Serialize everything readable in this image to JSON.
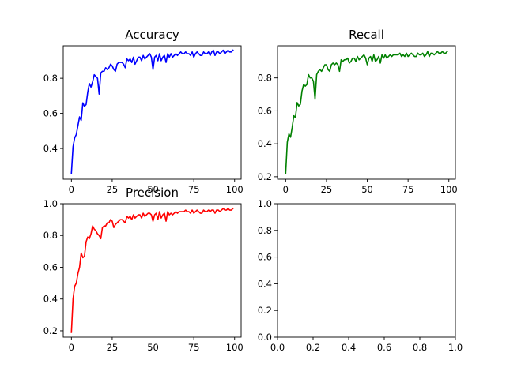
{
  "chart_data": [
    {
      "type": "line",
      "title": "Accuracy",
      "xlabel": "",
      "ylabel": "",
      "xlim": [
        -5,
        104
      ],
      "ylim": [
        0.225,
        0.985
      ],
      "xticks": [
        0,
        25,
        50,
        75,
        100
      ],
      "yticks": [
        0.4,
        0.6,
        0.8
      ],
      "xtick_labels": [
        "0",
        "25",
        "50",
        "75",
        "100"
      ],
      "ytick_labels": [
        "0.4",
        "0.6",
        "0.8"
      ],
      "grid": false,
      "color": "#0000ff",
      "series": [
        {
          "color": "#0000ff",
          "x": [
            0,
            1,
            2,
            3,
            4,
            5,
            6,
            7,
            8,
            9,
            10,
            11,
            12,
            13,
            14,
            15,
            16,
            17,
            18,
            19,
            20,
            21,
            22,
            23,
            24,
            25,
            26,
            27,
            28,
            29,
            30,
            31,
            32,
            33,
            34,
            35,
            36,
            37,
            38,
            39,
            40,
            41,
            42,
            43,
            44,
            45,
            46,
            47,
            48,
            49,
            50,
            51,
            52,
            53,
            54,
            55,
            56,
            57,
            58,
            59,
            60,
            61,
            62,
            63,
            64,
            65,
            66,
            67,
            68,
            69,
            70,
            71,
            72,
            73,
            74,
            75,
            76,
            77,
            78,
            79,
            80,
            81,
            82,
            83,
            84,
            85,
            86,
            87,
            88,
            89,
            90,
            91,
            92,
            93,
            94,
            95,
            96,
            97,
            98,
            99
          ],
          "y": [
            0.26,
            0.41,
            0.46,
            0.48,
            0.53,
            0.58,
            0.56,
            0.66,
            0.64,
            0.65,
            0.72,
            0.77,
            0.75,
            0.78,
            0.82,
            0.81,
            0.8,
            0.71,
            0.83,
            0.84,
            0.84,
            0.86,
            0.85,
            0.86,
            0.88,
            0.87,
            0.85,
            0.84,
            0.88,
            0.89,
            0.89,
            0.89,
            0.88,
            0.86,
            0.91,
            0.9,
            0.91,
            0.89,
            0.92,
            0.88,
            0.9,
            0.92,
            0.92,
            0.9,
            0.93,
            0.91,
            0.92,
            0.93,
            0.94,
            0.92,
            0.85,
            0.92,
            0.93,
            0.9,
            0.94,
            0.9,
            0.92,
            0.93,
            0.89,
            0.94,
            0.92,
            0.94,
            0.92,
            0.93,
            0.94,
            0.93,
            0.94,
            0.95,
            0.94,
            0.94,
            0.95,
            0.94,
            0.94,
            0.93,
            0.95,
            0.92,
            0.94,
            0.95,
            0.94,
            0.93,
            0.93,
            0.95,
            0.94,
            0.94,
            0.95,
            0.93,
            0.95,
            0.96,
            0.93,
            0.95,
            0.95,
            0.94,
            0.95,
            0.96,
            0.94,
            0.95,
            0.96,
            0.95,
            0.95,
            0.96
          ]
        }
      ]
    },
    {
      "type": "line",
      "title": "Recall",
      "xlabel": "",
      "ylabel": "",
      "xlim": [
        -5,
        104
      ],
      "ylim": [
        0.185,
        0.995
      ],
      "xticks": [
        0,
        25,
        50,
        75,
        100
      ],
      "yticks": [
        0.2,
        0.4,
        0.6,
        0.8
      ],
      "xtick_labels": [
        "0",
        "25",
        "50",
        "75",
        "100"
      ],
      "ytick_labels": [
        "0.2",
        "0.4",
        "0.6",
        "0.8"
      ],
      "grid": false,
      "color": "#008000",
      "series": [
        {
          "color": "#008000",
          "x": [
            0,
            1,
            2,
            3,
            4,
            5,
            6,
            7,
            8,
            9,
            10,
            11,
            12,
            13,
            14,
            15,
            16,
            17,
            18,
            19,
            20,
            21,
            22,
            23,
            24,
            25,
            26,
            27,
            28,
            29,
            30,
            31,
            32,
            33,
            34,
            35,
            36,
            37,
            38,
            39,
            40,
            41,
            42,
            43,
            44,
            45,
            46,
            47,
            48,
            49,
            50,
            51,
            52,
            53,
            54,
            55,
            56,
            57,
            58,
            59,
            60,
            61,
            62,
            63,
            64,
            65,
            66,
            67,
            68,
            69,
            70,
            71,
            72,
            73,
            74,
            75,
            76,
            77,
            78,
            79,
            80,
            81,
            82,
            83,
            84,
            85,
            86,
            87,
            88,
            89,
            90,
            91,
            92,
            93,
            94,
            95,
            96,
            97,
            98,
            99
          ],
          "y": [
            0.22,
            0.41,
            0.46,
            0.44,
            0.5,
            0.57,
            0.56,
            0.65,
            0.63,
            0.64,
            0.72,
            0.76,
            0.75,
            0.76,
            0.82,
            0.8,
            0.8,
            0.78,
            0.67,
            0.82,
            0.84,
            0.85,
            0.84,
            0.86,
            0.88,
            0.88,
            0.85,
            0.84,
            0.88,
            0.89,
            0.88,
            0.89,
            0.88,
            0.84,
            0.91,
            0.9,
            0.91,
            0.91,
            0.92,
            0.89,
            0.9,
            0.92,
            0.92,
            0.9,
            0.93,
            0.91,
            0.92,
            0.93,
            0.94,
            0.92,
            0.88,
            0.92,
            0.93,
            0.9,
            0.94,
            0.9,
            0.91,
            0.93,
            0.89,
            0.94,
            0.92,
            0.94,
            0.92,
            0.93,
            0.94,
            0.93,
            0.94,
            0.94,
            0.94,
            0.94,
            0.95,
            0.93,
            0.94,
            0.93,
            0.95,
            0.93,
            0.94,
            0.95,
            0.94,
            0.93,
            0.93,
            0.95,
            0.94,
            0.94,
            0.95,
            0.93,
            0.94,
            0.96,
            0.93,
            0.95,
            0.95,
            0.94,
            0.95,
            0.96,
            0.95,
            0.95,
            0.96,
            0.95,
            0.95,
            0.96
          ]
        }
      ]
    },
    {
      "type": "line",
      "title": "Precision",
      "xlabel": "",
      "ylabel": "",
      "xlim": [
        -5,
        104
      ],
      "ylim": [
        0.16,
        1.0
      ],
      "xticks": [
        0,
        25,
        50,
        75,
        100
      ],
      "yticks": [
        0.2,
        0.4,
        0.6,
        0.8,
        1.0
      ],
      "xtick_labels": [
        "0",
        "25",
        "50",
        "75",
        "100"
      ],
      "ytick_labels": [
        "0.2",
        "0.4",
        "0.6",
        "0.8",
        "1.0"
      ],
      "grid": false,
      "color": "#ff0000",
      "series": [
        {
          "color": "#ff0000",
          "x": [
            0,
            1,
            2,
            3,
            4,
            5,
            6,
            7,
            8,
            9,
            10,
            11,
            12,
            13,
            14,
            15,
            16,
            17,
            18,
            19,
            20,
            21,
            22,
            23,
            24,
            25,
            26,
            27,
            28,
            29,
            30,
            31,
            32,
            33,
            34,
            35,
            36,
            37,
            38,
            39,
            40,
            41,
            42,
            43,
            44,
            45,
            46,
            47,
            48,
            49,
            50,
            51,
            52,
            53,
            54,
            55,
            56,
            57,
            58,
            59,
            60,
            61,
            62,
            63,
            64,
            65,
            66,
            67,
            68,
            69,
            70,
            71,
            72,
            73,
            74,
            75,
            76,
            77,
            78,
            79,
            80,
            81,
            82,
            83,
            84,
            85,
            86,
            87,
            88,
            89,
            90,
            91,
            92,
            93,
            94,
            95,
            96,
            97,
            98,
            99
          ],
          "y": [
            0.19,
            0.4,
            0.48,
            0.5,
            0.56,
            0.6,
            0.69,
            0.66,
            0.67,
            0.76,
            0.79,
            0.78,
            0.81,
            0.86,
            0.84,
            0.83,
            0.81,
            0.8,
            0.78,
            0.85,
            0.86,
            0.86,
            0.88,
            0.88,
            0.9,
            0.89,
            0.85,
            0.87,
            0.88,
            0.89,
            0.9,
            0.9,
            0.89,
            0.88,
            0.92,
            0.91,
            0.92,
            0.9,
            0.93,
            0.91,
            0.92,
            0.93,
            0.93,
            0.91,
            0.94,
            0.92,
            0.93,
            0.94,
            0.94,
            0.93,
            0.89,
            0.93,
            0.94,
            0.9,
            0.95,
            0.91,
            0.93,
            0.94,
            0.89,
            0.95,
            0.93,
            0.94,
            0.93,
            0.94,
            0.95,
            0.94,
            0.95,
            0.95,
            0.95,
            0.95,
            0.96,
            0.95,
            0.95,
            0.94,
            0.96,
            0.94,
            0.95,
            0.96,
            0.95,
            0.94,
            0.94,
            0.96,
            0.95,
            0.95,
            0.96,
            0.95,
            0.96,
            0.96,
            0.94,
            0.96,
            0.96,
            0.95,
            0.96,
            0.97,
            0.96,
            0.96,
            0.97,
            0.96,
            0.96,
            0.97
          ]
        }
      ]
    },
    {
      "type": "line",
      "title": "",
      "xlabel": "",
      "ylabel": "",
      "xlim": [
        0,
        1
      ],
      "ylim": [
        0,
        1
      ],
      "xticks": [
        0,
        0.2,
        0.4,
        0.6,
        0.8,
        1.0
      ],
      "yticks": [
        0,
        0.2,
        0.4,
        0.6,
        0.8,
        1.0
      ],
      "xtick_labels": [
        "0.0",
        "0.2",
        "0.4",
        "0.6",
        "0.8",
        "1.0"
      ],
      "ytick_labels": [
        "0.0",
        "0.2",
        "0.4",
        "0.6",
        "0.8",
        "1.0"
      ],
      "grid": false,
      "series": []
    }
  ]
}
